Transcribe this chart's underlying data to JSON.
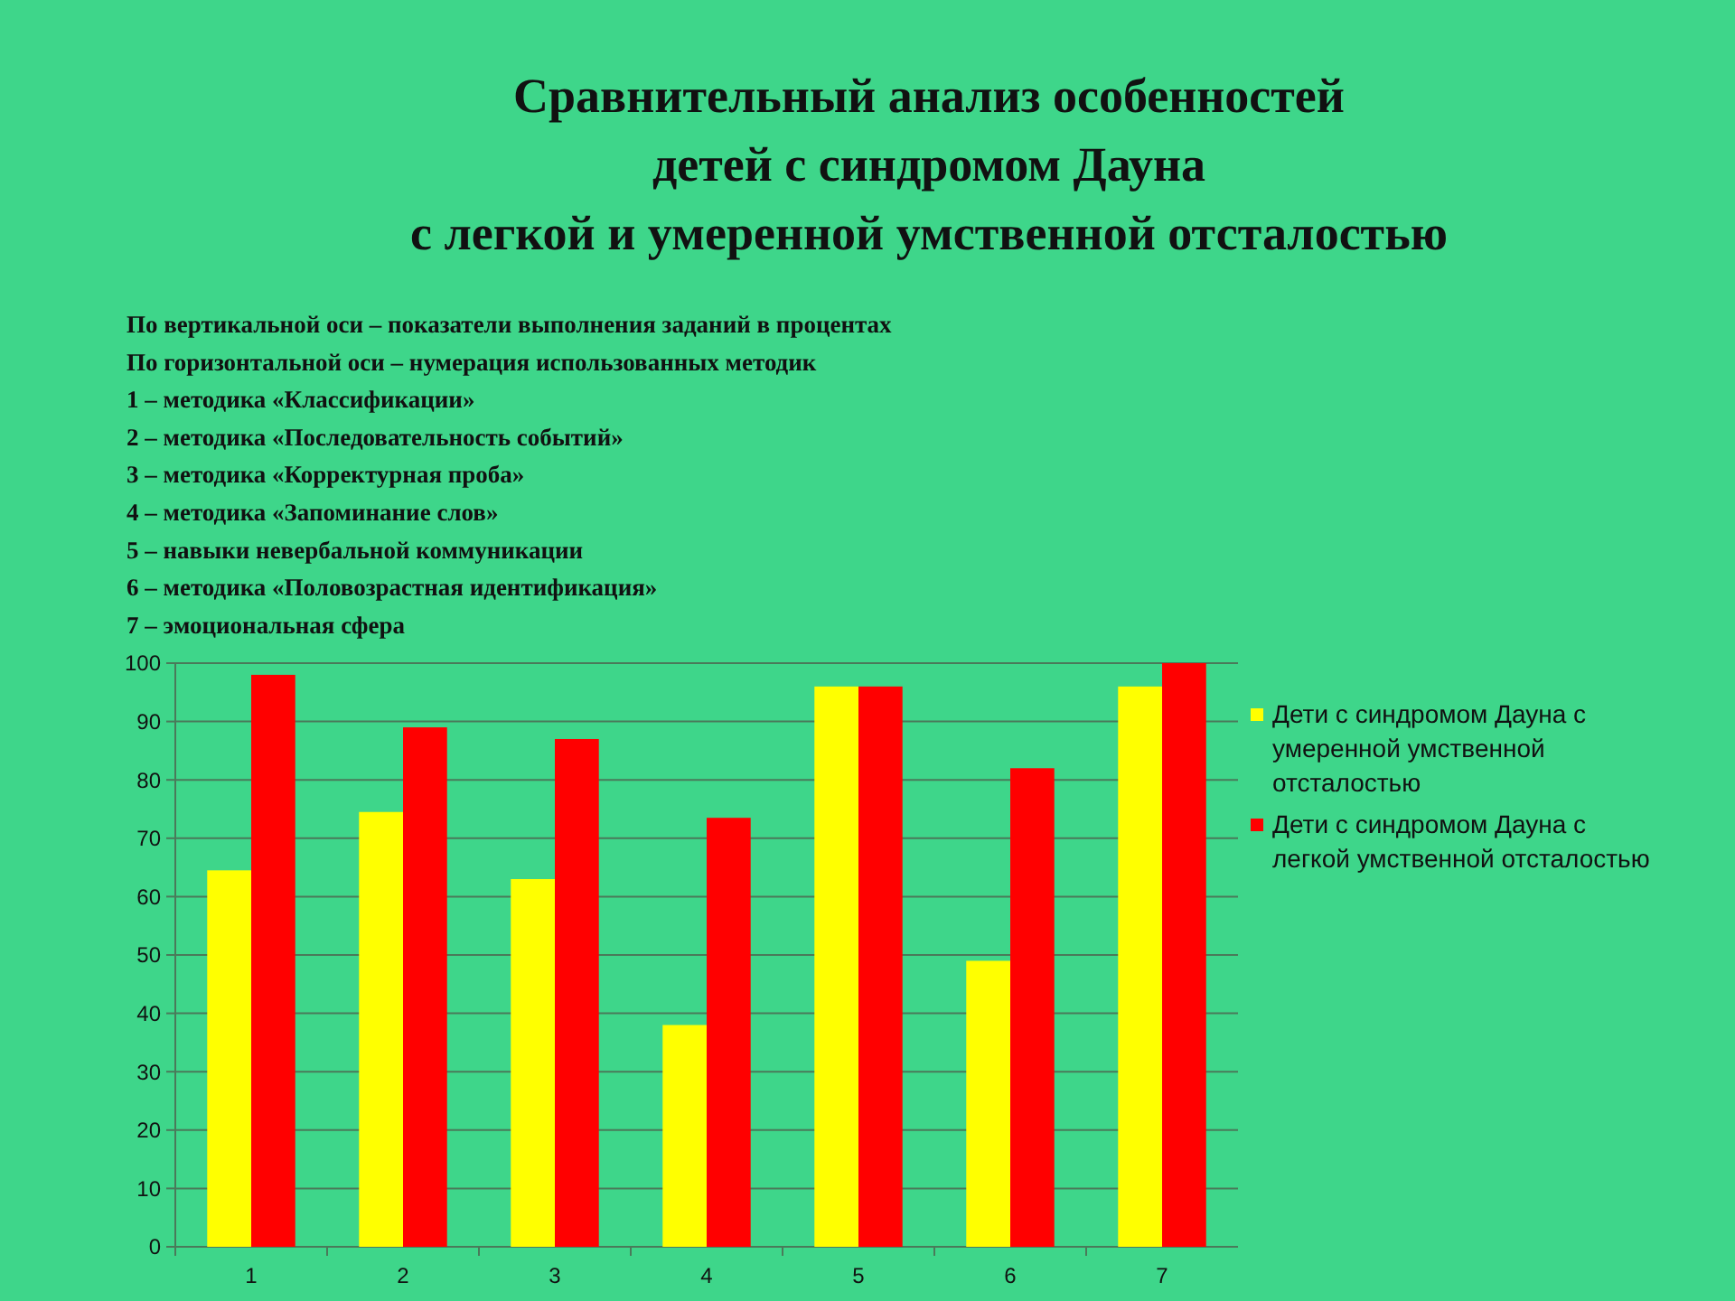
{
  "chart_data": {
    "type": "bar",
    "title": "Сравнительный анализ особенностей\nдетей с синдромом Дауна\nс легкой и умеренной умственной отсталостью",
    "annotations": [
      "По вертикальной оси – показатели выполнения заданий в процентах",
      "По горизонтальной оси – нумерация использованных методик",
      "1 – методика «Классификации»",
      "2 – методика «Последовательность событий»",
      "3 – методика «Корректурная проба»",
      "4 – методика «Запоминание слов»",
      "5 – навыки невербальной коммуникации",
      "6 – методика «Половозрастная идентификация»",
      "7 – эмоциональная сфера"
    ],
    "categories": [
      "1",
      "2",
      "3",
      "4",
      "5",
      "6",
      "7"
    ],
    "series": [
      {
        "name": "Дети с синдромом Дауна с умеренной умственной отсталостью",
        "color": "#ffff00",
        "values": [
          64.5,
          74.5,
          63,
          38,
          96,
          49,
          96
        ]
      },
      {
        "name": "Дети с синдромом Дауна с легкой умственной отсталостью",
        "color": "#ff0000",
        "values": [
          98,
          89,
          87,
          73.5,
          96,
          82,
          100
        ]
      }
    ],
    "ylim": [
      0,
      100
    ],
    "yticks": [
      0,
      10,
      20,
      30,
      40,
      50,
      60,
      70,
      80,
      90,
      100
    ],
    "grid": "y",
    "legend": "right"
  }
}
